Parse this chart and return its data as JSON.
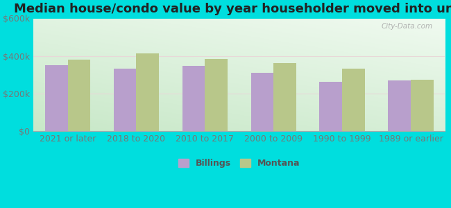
{
  "title": "Median house/condo value by year householder moved into unit",
  "categories": [
    "2021 or later",
    "2018 to 2020",
    "2010 to 2017",
    "2000 to 2009",
    "1990 to 1999",
    "1989 or earlier"
  ],
  "billings_values": [
    350000,
    330000,
    345000,
    310000,
    263000,
    270000
  ],
  "montana_values": [
    380000,
    415000,
    385000,
    362000,
    332000,
    272000
  ],
  "billings_color": "#b89fcc",
  "montana_color": "#b8c78a",
  "background_outer": "#00dede",
  "ylim": [
    0,
    600000
  ],
  "yticks": [
    0,
    200000,
    400000,
    600000
  ],
  "ytick_labels": [
    "$0",
    "$200k",
    "$400k",
    "$600k"
  ],
  "legend_billings": "Billings",
  "legend_montana": "Montana",
  "bar_width": 0.33,
  "title_fontsize": 13,
  "tick_fontsize": 9,
  "legend_fontsize": 9,
  "watermark": "City-Data.com"
}
